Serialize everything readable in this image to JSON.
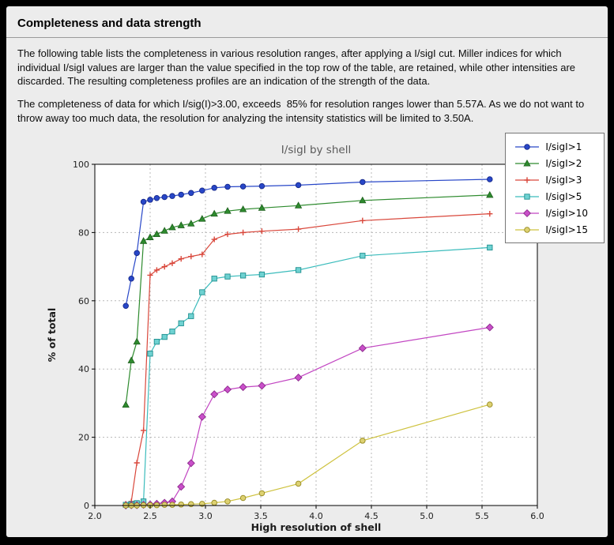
{
  "panel": {
    "title": "Completeness and data strength",
    "paragraph1": "The following table lists the completeness in various resolution ranges, after applying a I/sigI cut. Miller indices for which individual I/sigI values are larger than the value specified in the top row of the table, are retained, while other intensities are discarded. The resulting completeness profiles are an indication of the strength of the data.",
    "paragraph2": "The completeness of data for which I/sig(I)>3.00, exceeds  85% for resolution ranges lower than 5.57A. As we do not want to throw away too much data, the resolution for analyzing the intensity statistics will be limited to 3.50A."
  },
  "chart_data": {
    "type": "line",
    "title": "I/sigI by shell",
    "xlabel": "High resolution of shell",
    "ylabel": "% of total",
    "xlim": [
      2.0,
      6.0
    ],
    "ylim": [
      0,
      100
    ],
    "grid": true,
    "legend_position": "top-right",
    "xticks": [
      2.0,
      2.5,
      3.0,
      3.5,
      4.0,
      4.5,
      5.0,
      5.5,
      6.0
    ],
    "xtick_labels": [
      "2.0",
      "2.5",
      "3.0",
      "3.5",
      "4.0",
      "4.5",
      "5.0",
      "5.5",
      "6.0"
    ],
    "yticks": [
      0,
      20,
      40,
      60,
      80,
      100
    ],
    "ytick_labels": [
      "0",
      "20",
      "40",
      "60",
      "80",
      "100"
    ],
    "grid_color": "#b8b8b8",
    "x": [
      2.28,
      2.33,
      2.38,
      2.44,
      2.5,
      2.56,
      2.63,
      2.7,
      2.78,
      2.87,
      2.97,
      3.08,
      3.2,
      3.34,
      3.51,
      3.84,
      4.42,
      5.57
    ],
    "series": [
      {
        "name": "I/sigI>1",
        "color": "#2847c8",
        "fill": "#2847c8",
        "edge": "#16288a",
        "marker": "circle",
        "values": [
          58.5,
          66.5,
          74.0,
          89.0,
          89.6,
          90.1,
          90.4,
          90.7,
          91.1,
          91.6,
          92.3,
          93.1,
          93.4,
          93.5,
          93.6,
          93.9,
          94.8,
          95.6
        ]
      },
      {
        "name": "I/sigI>2",
        "color": "#2e8b2e",
        "fill": "#2e8b2e",
        "edge": "#1c5e1c",
        "marker": "triangle",
        "values": [
          29.5,
          42.5,
          48.0,
          77.5,
          78.6,
          79.5,
          80.5,
          81.5,
          82.1,
          82.6,
          84.0,
          85.5,
          86.3,
          86.8,
          87.2,
          87.9,
          89.4,
          91.0
        ]
      },
      {
        "name": "I/sigI>3",
        "color": "#d9473b",
        "fill": "#d9473b",
        "edge": "#a8291f",
        "marker": "plus",
        "values": [
          0.5,
          1.2,
          12.5,
          22.0,
          67.5,
          69.0,
          70.0,
          71.0,
          72.3,
          73.0,
          73.6,
          78.0,
          79.5,
          80.0,
          80.4,
          81.0,
          83.5,
          85.5
        ]
      },
      {
        "name": "I/sigI>5",
        "color": "#3bbcbc",
        "fill": "#6fd2d2",
        "edge": "#1f8f8f",
        "marker": "square",
        "values": [
          0.2,
          0.4,
          0.7,
          1.2,
          44.5,
          48.0,
          49.4,
          51.0,
          53.4,
          55.5,
          62.5,
          66.5,
          67.1,
          67.4,
          67.7,
          69.0,
          73.2,
          75.6
        ]
      },
      {
        "name": "I/sigI>10",
        "color": "#c246c2",
        "fill": "#c94fc9",
        "edge": "#8c2a8c",
        "marker": "diamond",
        "values": [
          0.0,
          0.1,
          0.1,
          0.2,
          0.3,
          0.5,
          0.8,
          1.2,
          5.5,
          12.4,
          26.0,
          32.6,
          34.0,
          34.7,
          35.1,
          37.5,
          46.1,
          52.2
        ]
      },
      {
        "name": "I/sigI>15",
        "color": "#cec23e",
        "fill": "#ddd171",
        "edge": "#968a21",
        "marker": "circle",
        "values": [
          0.0,
          0.0,
          0.0,
          0.1,
          0.1,
          0.1,
          0.2,
          0.2,
          0.3,
          0.4,
          0.5,
          0.8,
          1.2,
          2.2,
          3.6,
          6.4,
          19.0,
          29.6
        ]
      }
    ]
  }
}
